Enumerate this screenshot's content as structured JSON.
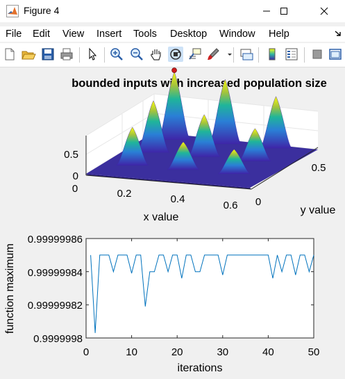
{
  "window": {
    "title": "Figure 4",
    "controls": {
      "minimize": "minimize",
      "maximize": "maximize",
      "close": "close"
    }
  },
  "menu": [
    "File",
    "Edit",
    "View",
    "Insert",
    "Tools",
    "Desktop",
    "Window",
    "Help"
  ],
  "menu_overflow_icon": "arrow-icon",
  "toolbar_icons": [
    "new-figure-icon",
    "open-file-icon",
    "save-icon",
    "print-icon",
    "select-arrow-icon",
    "zoom-in-icon",
    "zoom-out-icon",
    "pan-hand-icon",
    "rotate-3d-icon",
    "data-cursor-icon",
    "brush-icon",
    "link-plot-icon",
    "colorbar-icon",
    "legend-icon",
    "hide-plot-tools-icon",
    "show-plot-tools-icon"
  ],
  "colors": {
    "line": "#0072bd",
    "marker": "#cc1a1a",
    "surface_low": "#3e26a8",
    "surface_high": "#f9fb0e"
  },
  "chart_data": [
    {
      "type": "surface",
      "title": "bounded inputs with increased population size",
      "xlabel": "x value",
      "ylabel": "y value",
      "zlabel": "",
      "xticks": [
        "0",
        "0.2",
        "0.4",
        "0.6"
      ],
      "yticks": [
        "0",
        "0.5"
      ],
      "zticks": [
        "0",
        "0.5"
      ],
      "xlim": [
        0,
        0.65
      ],
      "ylim": [
        0,
        0.65
      ],
      "zlim": [
        0,
        0.9
      ],
      "peaks": [
        {
          "x": 0.1,
          "y": 0.6,
          "z": 0.82
        },
        {
          "x": 0.1,
          "y": 0.4,
          "z": 0.62
        },
        {
          "x": 0.1,
          "y": 0.2,
          "z": 0.45
        },
        {
          "x": 0.3,
          "y": 0.6,
          "z": 0.78
        },
        {
          "x": 0.3,
          "y": 0.4,
          "z": 0.5
        },
        {
          "x": 0.3,
          "y": 0.2,
          "z": 0.32
        },
        {
          "x": 0.5,
          "y": 0.6,
          "z": 0.62
        },
        {
          "x": 0.5,
          "y": 0.4,
          "z": 0.38
        },
        {
          "x": 0.5,
          "y": 0.2,
          "z": 0.28
        }
      ],
      "best_point": {
        "x": 0.1,
        "y": 0.6,
        "z": 0.84
      }
    },
    {
      "type": "line",
      "title": "",
      "xlabel": "iterations",
      "ylabel": "function maximum",
      "xticks": [
        "0",
        "10",
        "20",
        "30",
        "40",
        "50"
      ],
      "yticks": [
        "0.9999998",
        "0.99999982",
        "0.99999984",
        "0.99999986"
      ],
      "xlim": [
        0,
        50
      ],
      "ylim": [
        0.9999998,
        0.99999986
      ],
      "x": [
        1,
        2,
        3,
        4,
        5,
        6,
        7,
        8,
        9,
        10,
        11,
        12,
        13,
        14,
        15,
        16,
        17,
        18,
        19,
        20,
        21,
        22,
        23,
        24,
        25,
        26,
        27,
        28,
        29,
        30,
        31,
        32,
        33,
        34,
        35,
        36,
        37,
        38,
        39,
        40,
        41,
        42,
        43,
        44,
        45,
        46,
        47,
        48,
        49,
        50
      ],
      "y": [
        0.99999985,
        0.999999803,
        0.99999985,
        0.99999985,
        0.99999985,
        0.99999984,
        0.99999985,
        0.99999985,
        0.99999985,
        0.999999839,
        0.99999985,
        0.99999985,
        0.999999819,
        0.99999984,
        0.99999984,
        0.99999985,
        0.99999985,
        0.99999984,
        0.99999985,
        0.99999985,
        0.999999836,
        0.99999985,
        0.99999985,
        0.99999984,
        0.99999984,
        0.99999985,
        0.99999985,
        0.99999985,
        0.99999985,
        0.999999838,
        0.99999985,
        0.99999985,
        0.99999985,
        0.99999985,
        0.99999985,
        0.99999985,
        0.99999985,
        0.99999985,
        0.99999985,
        0.99999985,
        0.999999836,
        0.99999985,
        0.99999984,
        0.99999985,
        0.99999985,
        0.999999838,
        0.99999985,
        0.99999985,
        0.99999984,
        0.99999985
      ]
    }
  ]
}
